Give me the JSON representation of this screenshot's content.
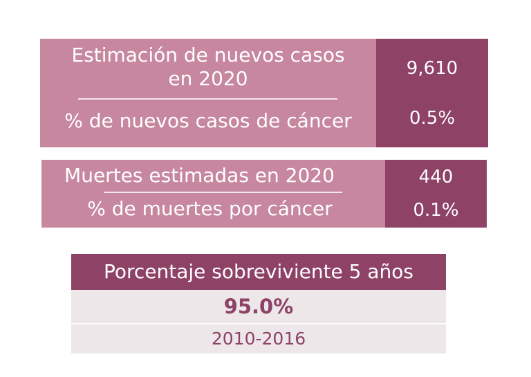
{
  "new_cases": {
    "label_line1": "Estimación de nuevos casos",
    "label_line2": "en 2020",
    "value": "9,610",
    "pct_label": "% de nuevos casos de cáncer",
    "pct_value": "0.5%"
  },
  "deaths": {
    "label": "Muertes estimadas en 2020",
    "value": "440",
    "pct_label": "% de muertes por cáncer",
    "pct_value": "0.1%"
  },
  "survival": {
    "title": "Porcentaje sobreviviente 5 años",
    "value": "95.0%",
    "period": "2010-2016"
  },
  "colors": {
    "light_mauve": "#c7879f",
    "dark_plum": "#8e4266",
    "light_gray": "#ede7ea"
  }
}
